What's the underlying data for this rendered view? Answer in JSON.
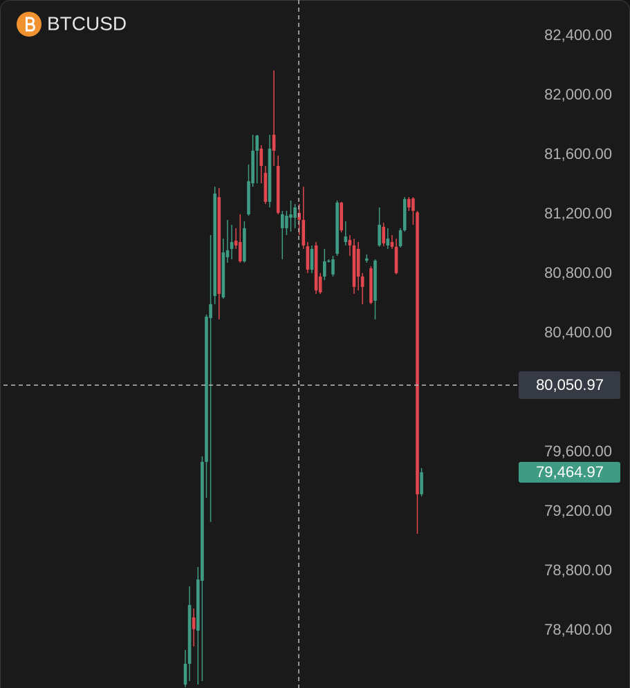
{
  "chart_data": {
    "type": "candlestick",
    "title": "BTCUSD",
    "ylim": [
      78014,
      82642
    ],
    "yticks": [
      {
        "value": 82400,
        "label": "82,400.00"
      },
      {
        "value": 82000,
        "label": "82,000.00"
      },
      {
        "value": 81600,
        "label": "81,600.00"
      },
      {
        "value": 81200,
        "label": "81,200.00"
      },
      {
        "value": 80800,
        "label": "80,800.00"
      },
      {
        "value": 80400,
        "label": "80,400.00"
      },
      {
        "value": 79600,
        "label": "79,600.00"
      },
      {
        "value": 79200,
        "label": "79,200.00"
      },
      {
        "value": 78800,
        "label": "78,800.00"
      },
      {
        "value": 78400,
        "label": "78,400.00"
      }
    ],
    "crosshair_price": {
      "value": 80050.97,
      "label": "80,050.97"
    },
    "last_price": {
      "value": 79464.97,
      "label": "79,464.97"
    },
    "up_color": "#3f9b83",
    "down_color": "#e0474f",
    "open": [
      78037,
      78177,
      78489,
      78400,
      78735,
      79535,
      80503,
      80651,
      81316,
      80642,
      80912,
      80968,
      81023,
      81014,
      80884,
      81200,
      81409,
      81628,
      81642,
      81479,
      81284,
      81735,
      81526,
      81107,
      81107,
      81177,
      81177,
      81210,
      81163,
      80986,
      80828,
      80991,
      80782,
      80782,
      80884,
      80796,
      80935,
      81279,
      81014,
      81028,
      80991,
      80968,
      80782,
      80889,
      80837,
      80619,
      80991,
      81116,
      80991,
      81014,
      80982,
      80986,
      81093,
      81303,
      81307,
      81214,
      79317
    ],
    "close": [
      78177,
      78572,
      78410,
      78744,
      79535,
      80512,
      80596,
      81340,
      80665,
      80944,
      80958,
      81014,
      80991,
      80884,
      81107,
      81423,
      81628,
      81730,
      81526,
      81284,
      81642,
      81628,
      81210,
      81200,
      81191,
      81200,
      81247,
      81163,
      80991,
      80828,
      80968,
      80689,
      80675,
      80884,
      80889,
      80898,
      81279,
      81093,
      81051,
      80991,
      80712,
      80782,
      80712,
      80903,
      80605,
      80889,
      81130,
      81005,
      81037,
      80982,
      80805,
      81093,
      81303,
      81247,
      81223,
      79317,
      79464.97
    ],
    "high": [
      78270,
      78698,
      78549,
      78828,
      79572,
      80526,
      81061,
      81386,
      81377,
      81037,
      81163,
      81130,
      81107,
      81200,
      81154,
      81535,
      81735,
      81735,
      81665,
      81526,
      81735,
      82168,
      81596,
      81223,
      81223,
      81293,
      81270,
      81270,
      81386,
      81014,
      80991,
      81014,
      80805,
      80968,
      80898,
      80921,
      81293,
      81284,
      81154,
      81061,
      81037,
      81014,
      80805,
      80930,
      80851,
      80898,
      81247,
      81144,
      81107,
      81061,
      81037,
      81107,
      81316,
      81316,
      81316,
      81223,
      79493
    ],
    "low": [
      78020,
      78061,
      78293,
      78037,
      78061,
      79293,
      79131,
      80596,
      80493,
      80633,
      80875,
      80898,
      80968,
      80875,
      80875,
      81191,
      81386,
      81409,
      81409,
      81270,
      81247,
      81526,
      81200,
      80898,
      81061,
      81084,
      81107,
      81061,
      80968,
      80805,
      80805,
      80665,
      80665,
      80758,
      80875,
      80782,
      80921,
      81079,
      80991,
      80921,
      80665,
      80689,
      80596,
      80875,
      80596,
      80493,
      80982,
      80986,
      80968,
      80968,
      80796,
      80977,
      81084,
      81223,
      81130,
      79051,
      79303
    ]
  }
}
